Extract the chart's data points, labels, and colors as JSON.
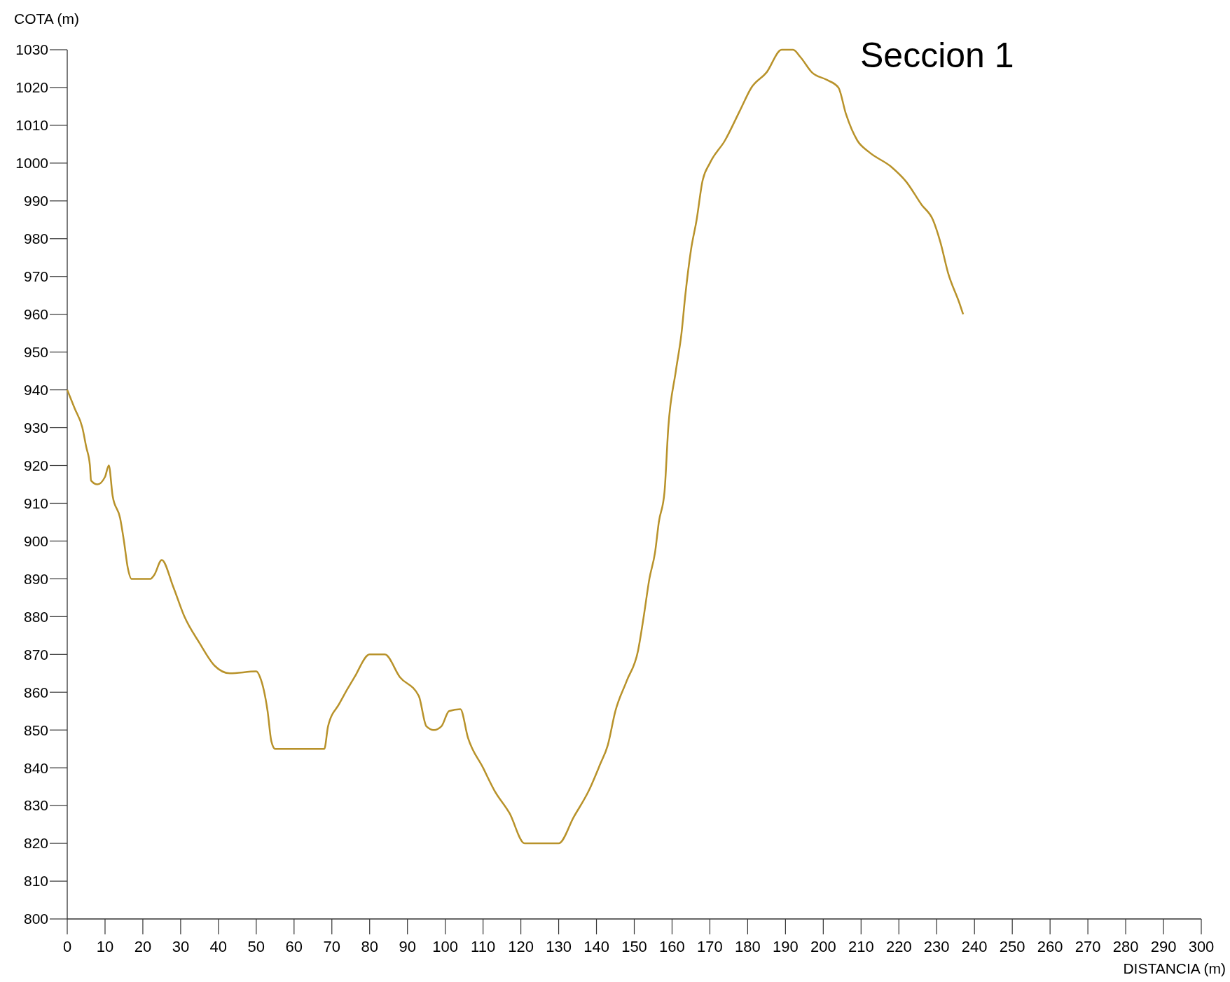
{
  "chart_data": {
    "type": "line",
    "title": "Seccion 1",
    "xlabel": "DISTANCIA (m)",
    "ylabel": "COTA (m)",
    "x": [
      0,
      2,
      4,
      5,
      6,
      6.3,
      8,
      10,
      11,
      12,
      14,
      15,
      16,
      17,
      22,
      23,
      25,
      28,
      31,
      35,
      39,
      43,
      50,
      51,
      53,
      54,
      55,
      68,
      69,
      72,
      76,
      80,
      84,
      88,
      93,
      95,
      97,
      99,
      101,
      104,
      106,
      110,
      113,
      117,
      121,
      130,
      134,
      138,
      141,
      143,
      145,
      148,
      151,
      152.5,
      154,
      155.5,
      156.5,
      158,
      159,
      161,
      162.5,
      163.5,
      165,
      166.5,
      168,
      170,
      174,
      178,
      181,
      185,
      189,
      192,
      194,
      197,
      201,
      204,
      206,
      209,
      212,
      218,
      222,
      226,
      229,
      231,
      233,
      236,
      237
    ],
    "series": [
      {
        "color": "#b8922a",
        "values": [
          940,
          935,
          930,
          925,
          920,
          916,
          915,
          917,
          920,
          912,
          906,
          900,
          893,
          890,
          890,
          891,
          895,
          888,
          880,
          873,
          867,
          865,
          865.5,
          864,
          855,
          847,
          845,
          845,
          851,
          857,
          864,
          870,
          870,
          864,
          859,
          851,
          850,
          851,
          855,
          855.5,
          848,
          840,
          834,
          828,
          820,
          820,
          827,
          834,
          841,
          846,
          855,
          863,
          871,
          880,
          890,
          897,
          905,
          913,
          930,
          945,
          955,
          965,
          977,
          985,
          995,
          1000,
          1006,
          1014,
          1020,
          1024,
          1030,
          1030,
          1028,
          1024,
          1022,
          1020,
          1013,
          1006,
          1003,
          999,
          995,
          989,
          985,
          979,
          971,
          963,
          960
        ]
      }
    ],
    "xlim": [
      0,
      300
    ],
    "ylim": [
      800,
      1030
    ],
    "xticks": [
      0,
      10,
      20,
      30,
      40,
      50,
      60,
      70,
      80,
      90,
      100,
      110,
      120,
      130,
      140,
      150,
      160,
      170,
      180,
      190,
      200,
      210,
      220,
      230,
      240,
      250,
      260,
      270,
      280,
      290,
      300
    ],
    "yticks": [
      800,
      810,
      820,
      830,
      840,
      850,
      860,
      870,
      880,
      890,
      900,
      910,
      920,
      930,
      940,
      950,
      960,
      970,
      980,
      990,
      1000,
      1010,
      1020,
      1030
    ],
    "grid": false,
    "marker": "none",
    "line_style": "solid"
  }
}
